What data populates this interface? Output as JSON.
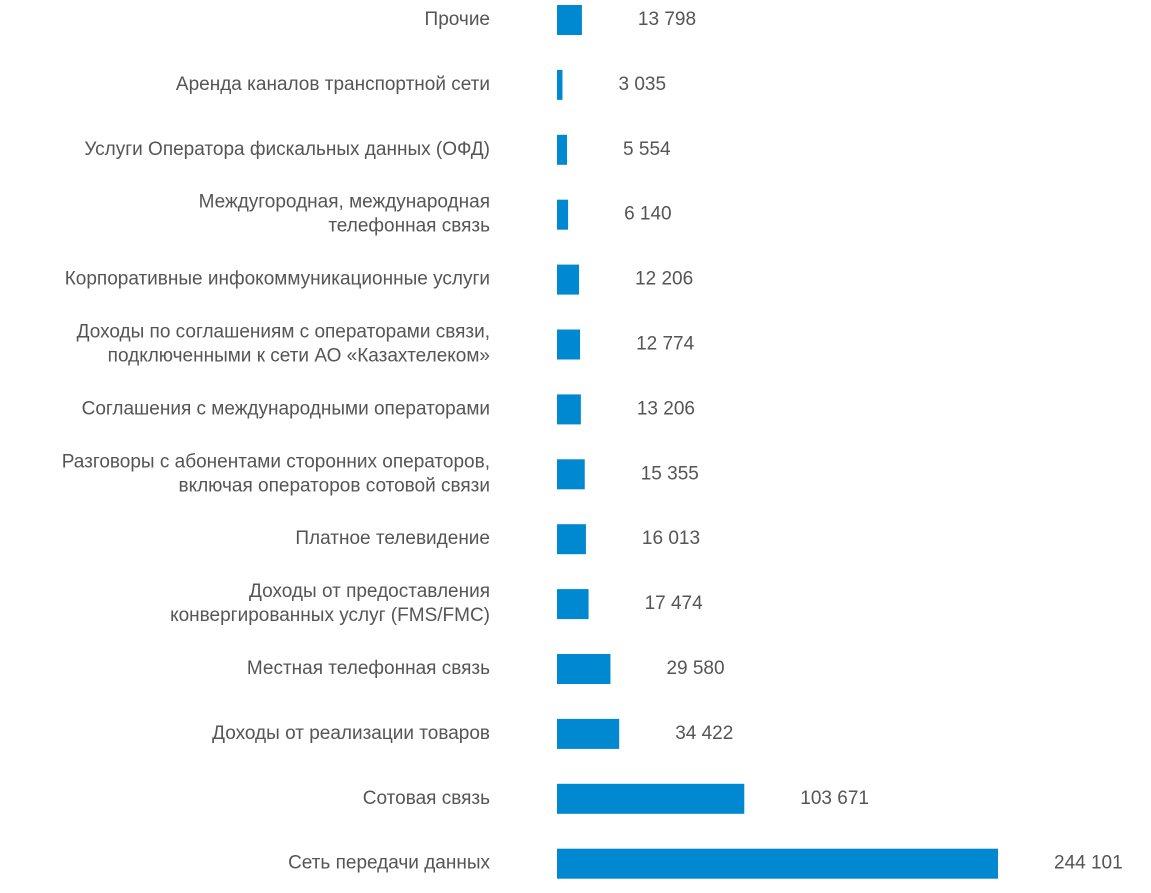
{
  "chart_data": {
    "type": "barh",
    "categories": [
      "Прочие",
      "Аренда каналов транспортной сети",
      "Услуги Оператора фискальных данных (ОФД)",
      "Междугородная, международная\nтелефонная связь",
      "Корпоративные инфокоммуникационные услуги",
      "Доходы по соглашениям с операторами связи,\nподключенными к сети АО «Казахтелеком»",
      "Соглашения с международными операторами",
      "Разговоры с абонентами сторонних операторов,\nвключая операторов сотовой связи",
      "Платное телевидение",
      "Доходы от предоставления\nконвергированных услуг (FMS/FMC)",
      "Местная телефонная связь",
      "Доходы от реализации товаров",
      "Сотовая связь",
      "Сеть передачи данных"
    ],
    "values": [
      13798,
      3035,
      5554,
      6140,
      12206,
      12774,
      13206,
      15355,
      16013,
      17474,
      29580,
      34422,
      103671,
      244101
    ],
    "value_labels": [
      "13 798",
      "3 035",
      "5 554",
      "6 140",
      "12 206",
      "12 774",
      "13 206",
      "15 355",
      "16 013",
      "17 474",
      "29 580",
      "34 422",
      "103 671",
      "244 101"
    ],
    "color": "#0088d1"
  }
}
